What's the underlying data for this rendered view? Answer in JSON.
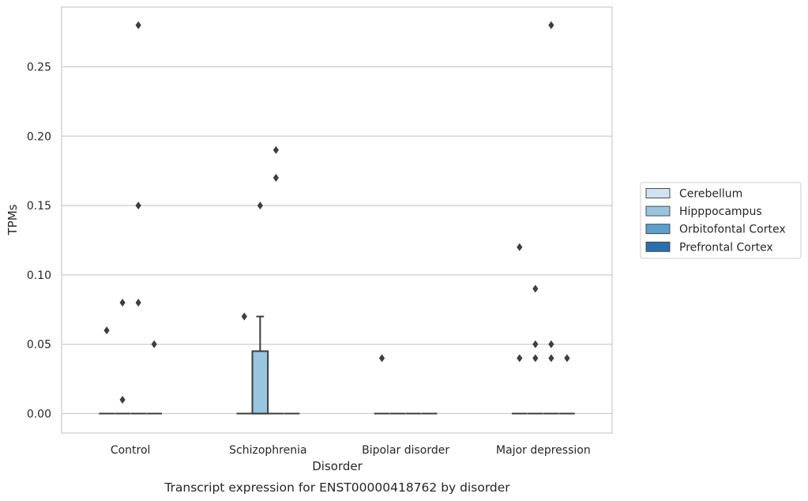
{
  "caption": "Transcript expression for ENST00000418762 by disorder",
  "chart_data": {
    "type": "box",
    "xlabel": "Disorder",
    "ylabel": "TPMs",
    "categories": [
      "Control",
      "Schizophrenia",
      "Bipolar disorder",
      "Major depression"
    ],
    "ylim": [
      -0.014,
      0.293
    ],
    "yticks": [
      0.0,
      0.05,
      0.1,
      0.15,
      0.2,
      0.25
    ],
    "ytick_labels": [
      "0.00",
      "0.05",
      "0.10",
      "0.15",
      "0.20",
      "0.25"
    ],
    "grid": "horizontal",
    "legend_position": "outside-right",
    "series": [
      {
        "name": "Cerebellum",
        "color": "#d1e2f2",
        "boxes": [
          {
            "category": "Control",
            "q1": 0,
            "median": 0,
            "q3": 0,
            "whisker_low": 0,
            "whisker_high": 0,
            "outliers": [
              0.06
            ]
          },
          {
            "category": "Schizophrenia",
            "q1": 0,
            "median": 0,
            "q3": 0,
            "whisker_low": 0,
            "whisker_high": 0,
            "outliers": [
              0.07
            ]
          },
          {
            "category": "Bipolar disorder",
            "q1": 0,
            "median": 0,
            "q3": 0,
            "whisker_low": 0,
            "whisker_high": 0,
            "outliers": [
              0.04
            ]
          },
          {
            "category": "Major depression",
            "q1": 0,
            "median": 0,
            "q3": 0,
            "whisker_low": 0,
            "whisker_high": 0,
            "outliers": [
              0.12,
              0.04
            ]
          }
        ]
      },
      {
        "name": "Hipppocampus",
        "color": "#9ac5de",
        "boxes": [
          {
            "category": "Control",
            "q1": 0,
            "median": 0,
            "q3": 0,
            "whisker_low": 0,
            "whisker_high": 0,
            "outliers": [
              0.08,
              0.01
            ]
          },
          {
            "category": "Schizophrenia",
            "q1": 0,
            "median": 0,
            "q3": 0.045,
            "whisker_low": 0,
            "whisker_high": 0.07,
            "outliers": [
              0.15
            ]
          },
          {
            "category": "Bipolar disorder",
            "q1": 0,
            "median": 0,
            "q3": 0,
            "whisker_low": 0,
            "whisker_high": 0,
            "outliers": []
          },
          {
            "category": "Major depression",
            "q1": 0,
            "median": 0,
            "q3": 0,
            "whisker_low": 0,
            "whisker_high": 0,
            "outliers": [
              0.09,
              0.05,
              0.04
            ]
          }
        ]
      },
      {
        "name": "Orbitofontal Cortex",
        "color": "#5b9fcd",
        "boxes": [
          {
            "category": "Control",
            "q1": 0,
            "median": 0,
            "q3": 0,
            "whisker_low": 0,
            "whisker_high": 0,
            "outliers": [
              0.28,
              0.15,
              0.08
            ]
          },
          {
            "category": "Schizophrenia",
            "q1": 0,
            "median": 0,
            "q3": 0,
            "whisker_low": 0,
            "whisker_high": 0,
            "outliers": [
              0.19,
              0.17
            ]
          },
          {
            "category": "Bipolar disorder",
            "q1": 0,
            "median": 0,
            "q3": 0,
            "whisker_low": 0,
            "whisker_high": 0,
            "outliers": []
          },
          {
            "category": "Major depression",
            "q1": 0,
            "median": 0,
            "q3": 0,
            "whisker_low": 0,
            "whisker_high": 0,
            "outliers": [
              0.28,
              0.05,
              0.04
            ]
          }
        ]
      },
      {
        "name": "Prefrontal Cortex",
        "color": "#2a6fad",
        "boxes": [
          {
            "category": "Control",
            "q1": 0,
            "median": 0,
            "q3": 0,
            "whisker_low": 0,
            "whisker_high": 0,
            "outliers": [
              0.05
            ]
          },
          {
            "category": "Schizophrenia",
            "q1": 0,
            "median": 0,
            "q3": 0,
            "whisker_low": 0,
            "whisker_high": 0,
            "outliers": []
          },
          {
            "category": "Bipolar disorder",
            "q1": 0,
            "median": 0,
            "q3": 0,
            "whisker_low": 0,
            "whisker_high": 0,
            "outliers": []
          },
          {
            "category": "Major depression",
            "q1": 0,
            "median": 0,
            "q3": 0,
            "whisker_low": 0,
            "whisker_high": 0,
            "outliers": [
              0.04
            ]
          }
        ]
      }
    ]
  }
}
